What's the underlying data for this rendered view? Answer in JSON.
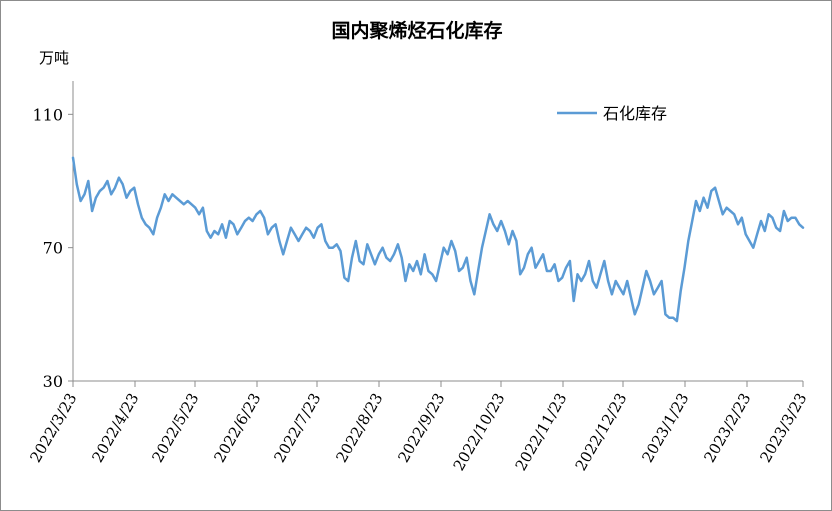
{
  "chart_data": {
    "type": "line",
    "title": "国内聚烯烃石化库存",
    "ylabel": "万吨",
    "xlabel": "",
    "ylim": [
      30,
      120
    ],
    "yticks": [
      30,
      70,
      110
    ],
    "grid": false,
    "legend_position": "top-right",
    "x_start": "2022-03-23",
    "x_end": "2023-03-23",
    "x_tick_labels": [
      "2022/3/23",
      "2022/4/23",
      "2022/5/23",
      "2022/6/23",
      "2022/7/23",
      "2022/8/23",
      "2022/9/23",
      "2022/10/23",
      "2022/11/23",
      "2022/12/23",
      "2023/1/23",
      "2023/2/23",
      "2023/3/23"
    ],
    "series": [
      {
        "name": "石化库存",
        "color": "#5b9bd5",
        "values": [
          97,
          89,
          84,
          86,
          90,
          81,
          85,
          87,
          88,
          90,
          86,
          88,
          91,
          89,
          85,
          87,
          88,
          83,
          79,
          77,
          76,
          74,
          79,
          82,
          86,
          84,
          86,
          85,
          84,
          83,
          84,
          83,
          82,
          80,
          82,
          75,
          73,
          75,
          74,
          77,
          73,
          78,
          77,
          74,
          76,
          78,
          79,
          78,
          80,
          81,
          79,
          74,
          76,
          77,
          72,
          68,
          72,
          76,
          74,
          72,
          74,
          76,
          75,
          73,
          76,
          77,
          72,
          70,
          70,
          71,
          69,
          61,
          60,
          67,
          72,
          66,
          65,
          71,
          68,
          65,
          68,
          70,
          67,
          66,
          68,
          71,
          67,
          60,
          65,
          63,
          66,
          62,
          68,
          63,
          62,
          60,
          65,
          70,
          68,
          72,
          69,
          63,
          64,
          67,
          60,
          56,
          63,
          70,
          75,
          80,
          77,
          75,
          78,
          75,
          71,
          75,
          72,
          62,
          64,
          68,
          70,
          64,
          66,
          68,
          63,
          63,
          65,
          60,
          61,
          64,
          66,
          54,
          62,
          60,
          62,
          66,
          60,
          58,
          62,
          66,
          60,
          56,
          60,
          58,
          56,
          60,
          55,
          50,
          53,
          58,
          63,
          60,
          56,
          58,
          60,
          50,
          49,
          49,
          48,
          57,
          64,
          72,
          78,
          84,
          81,
          85,
          82,
          87,
          88,
          84,
          80,
          82,
          81,
          80,
          77,
          79,
          74,
          72,
          70,
          74,
          78,
          75,
          80,
          79,
          76,
          75,
          81,
          78,
          79,
          79,
          77,
          76
        ],
        "values_note_unit": "万吨"
      }
    ]
  }
}
